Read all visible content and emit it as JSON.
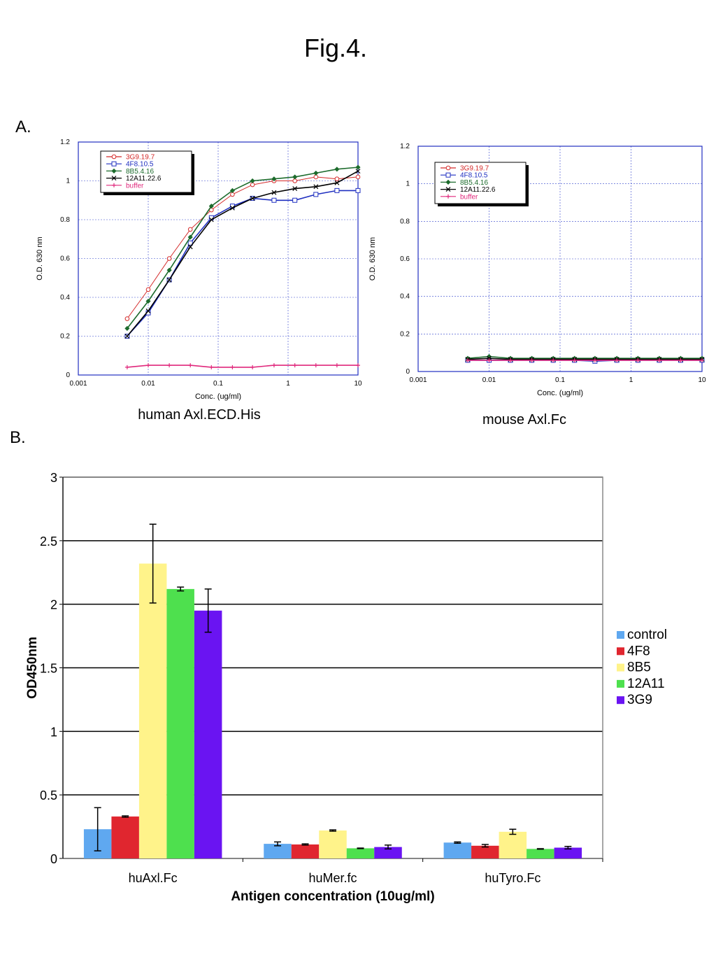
{
  "figure_title": "Fig.4.",
  "panel_a_label": "A.",
  "panel_b_label": "B.",
  "chart_data": [
    {
      "type": "line",
      "caption": "human Axl.ECD.His",
      "xlabel": "Conc. (ug/ml)",
      "ylabel": "O.D. 630 nm",
      "xscale": "log",
      "xlim": [
        0.001,
        10
      ],
      "ylim": [
        0,
        1.2
      ],
      "xticks": [
        "0.001",
        "0.01",
        "0.1",
        "1",
        "10"
      ],
      "yticks": [
        "0",
        "0.2",
        "0.4",
        "0.6",
        "0.8",
        "1",
        "1.2"
      ],
      "grid": true,
      "legend_position": "top-left",
      "x": [
        0.005,
        0.01,
        0.02,
        0.04,
        0.08,
        0.16,
        0.31,
        0.63,
        1.25,
        2.5,
        5,
        10
      ],
      "series": [
        {
          "name": "3G9.19.7",
          "color": "#d42a2a",
          "marker": "circle",
          "values": [
            0.29,
            0.44,
            0.6,
            0.75,
            0.85,
            0.93,
            0.98,
            1.0,
            1.0,
            1.02,
            1.01,
            1.02
          ]
        },
        {
          "name": "4F8.10.5",
          "color": "#1f2fc0",
          "marker": "square",
          "values": [
            0.2,
            0.32,
            0.49,
            0.68,
            0.81,
            0.87,
            0.91,
            0.9,
            0.9,
            0.93,
            0.95,
            0.95
          ]
        },
        {
          "name": "8B5.4.16",
          "color": "#1c6b2c",
          "marker": "diamond",
          "values": [
            0.24,
            0.38,
            0.54,
            0.71,
            0.87,
            0.95,
            1.0,
            1.01,
            1.02,
            1.04,
            1.06,
            1.07
          ]
        },
        {
          "name": "12A11.22.6",
          "color": "#000000",
          "marker": "x",
          "values": [
            0.2,
            0.33,
            0.49,
            0.66,
            0.8,
            0.86,
            0.91,
            0.94,
            0.96,
            0.97,
            0.99,
            1.05
          ]
        },
        {
          "name": "buffer",
          "color": "#e0287c",
          "marker": "plus",
          "values": [
            0.04,
            0.05,
            0.05,
            0.05,
            0.04,
            0.04,
            0.04,
            0.05,
            0.05,
            0.05,
            0.05,
            0.05
          ]
        }
      ]
    },
    {
      "type": "line",
      "caption": "mouse Axl.Fc",
      "xlabel": "Conc. (ug/ml)",
      "ylabel": "O.D. 630 nm",
      "xscale": "log",
      "xlim": [
        0.001,
        10
      ],
      "ylim": [
        0,
        1.2
      ],
      "xticks": [
        "0.001",
        "0.01",
        "0.1",
        "1",
        "10"
      ],
      "yticks": [
        "0",
        "0.2",
        "0.4",
        "0.6",
        "0.8",
        "1",
        "1.2"
      ],
      "grid": true,
      "legend_position": "top-left",
      "x": [
        0.005,
        0.01,
        0.02,
        0.04,
        0.08,
        0.16,
        0.31,
        0.63,
        1.25,
        2.5,
        5,
        10
      ],
      "series": [
        {
          "name": "3G9.19.7",
          "color": "#d42a2a",
          "marker": "circle",
          "values": [
            0.06,
            0.06,
            0.06,
            0.06,
            0.06,
            0.06,
            0.06,
            0.06,
            0.06,
            0.06,
            0.06,
            0.06
          ]
        },
        {
          "name": "4F8.10.5",
          "color": "#1f2fc0",
          "marker": "square",
          "values": [
            0.06,
            0.06,
            0.06,
            0.06,
            0.06,
            0.06,
            0.055,
            0.06,
            0.06,
            0.06,
            0.06,
            0.06
          ]
        },
        {
          "name": "8B5.4.16",
          "color": "#1c6b2c",
          "marker": "diamond",
          "values": [
            0.07,
            0.08,
            0.07,
            0.07,
            0.07,
            0.07,
            0.07,
            0.07,
            0.07,
            0.07,
            0.07,
            0.07
          ]
        },
        {
          "name": "12A11.22.6",
          "color": "#000000",
          "marker": "x",
          "values": [
            0.065,
            0.07,
            0.065,
            0.065,
            0.065,
            0.065,
            0.065,
            0.065,
            0.065,
            0.065,
            0.065,
            0.065
          ]
        },
        {
          "name": "buffer",
          "color": "#e0287c",
          "marker": "plus",
          "values": [
            0.06,
            0.06,
            0.06,
            0.06,
            0.06,
            0.06,
            0.06,
            0.06,
            0.06,
            0.06,
            0.06,
            0.06
          ]
        }
      ]
    },
    {
      "type": "bar",
      "xlabel": "Antigen concentration (10ug/ml)",
      "ylabel": "OD450nm",
      "ylim": [
        0,
        3
      ],
      "yticks": [
        "0",
        "0.5",
        "1",
        "1.5",
        "2",
        "2.5",
        "3"
      ],
      "grid": true,
      "legend_position": "right",
      "categories": [
        "huAxl.Fc",
        "huMer.fc",
        "huTyro.Fc"
      ],
      "series": [
        {
          "name": "control",
          "color": "#5fa8f0",
          "values": [
            0.23,
            0.115,
            0.125
          ],
          "errors": [
            0.17,
            0.015,
            0.005
          ]
        },
        {
          "name": "4F8",
          "color": "#e0262f",
          "values": [
            0.33,
            0.11,
            0.1
          ],
          "errors": [
            0.005,
            0.005,
            0.01
          ]
        },
        {
          "name": "8B5",
          "color": "#fff38a",
          "values": [
            2.32,
            0.22,
            0.21
          ],
          "errors": [
            0.31,
            0.005,
            0.02
          ]
        },
        {
          "name": "12A11",
          "color": "#4ee04e",
          "values": [
            2.12,
            0.08,
            0.075
          ],
          "errors": [
            0.015,
            0.002,
            0.002
          ]
        },
        {
          "name": "3G9",
          "color": "#6a14f2",
          "values": [
            1.95,
            0.09,
            0.085
          ],
          "errors": [
            0.17,
            0.015,
            0.01
          ]
        }
      ]
    }
  ]
}
